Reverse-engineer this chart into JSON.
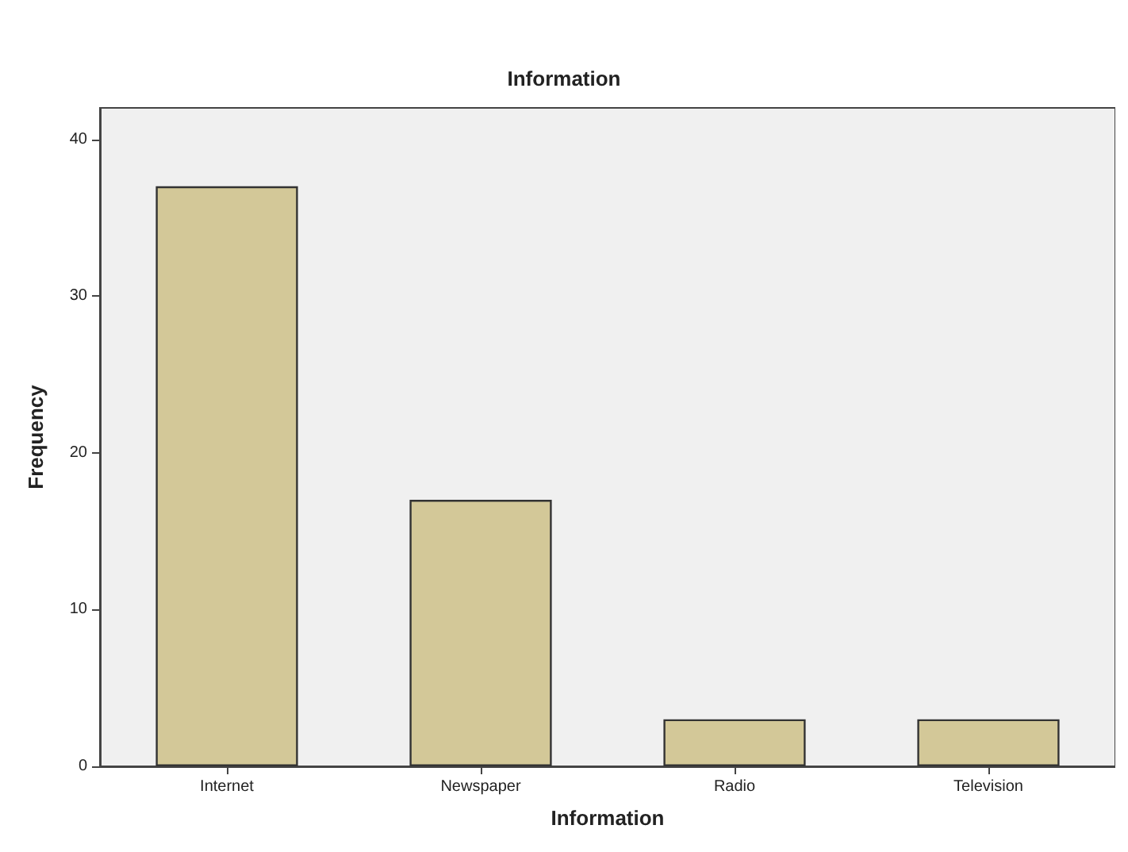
{
  "chart_data": {
    "type": "bar",
    "title": "Information",
    "xlabel": "Information",
    "ylabel": "Frequency",
    "categories": [
      "Internet",
      "Newspaper",
      "Radio",
      "Television"
    ],
    "values": [
      37,
      17,
      3,
      3
    ],
    "color": "#d3c898",
    "ylim": [
      0,
      42
    ],
    "yticks": [
      0,
      10,
      20,
      30,
      40
    ],
    "grid": false
  }
}
